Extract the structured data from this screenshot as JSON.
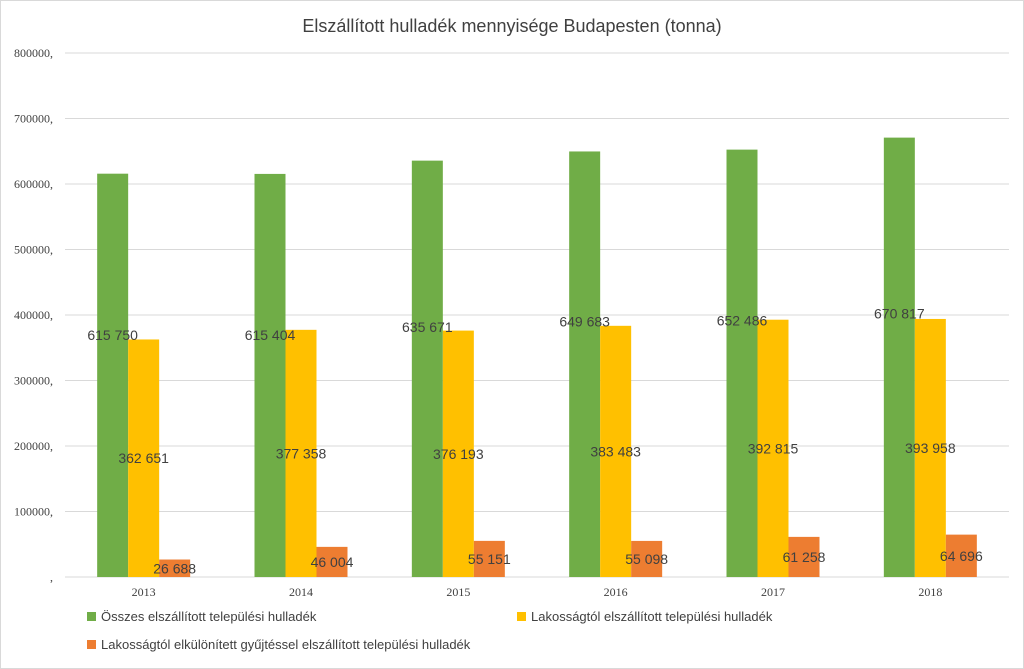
{
  "chart_data": {
    "type": "bar",
    "title": "Elszállított hulladék mennyisége  Budapesten  (tonna)",
    "categories": [
      "2013",
      "2014",
      "2015",
      "2016",
      "2017",
      "2018"
    ],
    "series": [
      {
        "name": "Összes elszállított települési hulladék",
        "color": "#70ad47",
        "values": [
          615750,
          615404,
          635671,
          649683,
          652486,
          670817
        ],
        "labels": [
          "615 750",
          "615 404",
          "635 671",
          "649 683",
          "652 486",
          "670 817"
        ]
      },
      {
        "name": "Lakosságtól elszállított települési hulladék",
        "color": "#ffc000",
        "values": [
          362651,
          377358,
          376193,
          383483,
          392815,
          393958
        ],
        "labels": [
          "362 651",
          "377 358",
          "376 193",
          "383 483",
          "392 815",
          "393 958"
        ]
      },
      {
        "name": "Lakosságtól elkülönített gyűjtéssel elszállított települési hulladék",
        "color": "#ed7d31",
        "values": [
          26688,
          46004,
          55151,
          55098,
          61258,
          64696
        ],
        "labels": [
          "26 688",
          "46 004",
          "55 151",
          "55 098",
          "61 258",
          "64 696"
        ]
      }
    ],
    "ylim": [
      0,
      800000
    ],
    "yticks": [
      0,
      100000,
      200000,
      300000,
      400000,
      500000,
      600000,
      700000,
      800000
    ],
    "ytick_labels": [
      ",",
      "100000,",
      "200000,",
      "300000,",
      "400000,",
      "500000,",
      "600000,",
      "700000,",
      "800000,"
    ],
    "grid": true,
    "legend_position": "bottom",
    "xlabel": "",
    "ylabel": ""
  }
}
